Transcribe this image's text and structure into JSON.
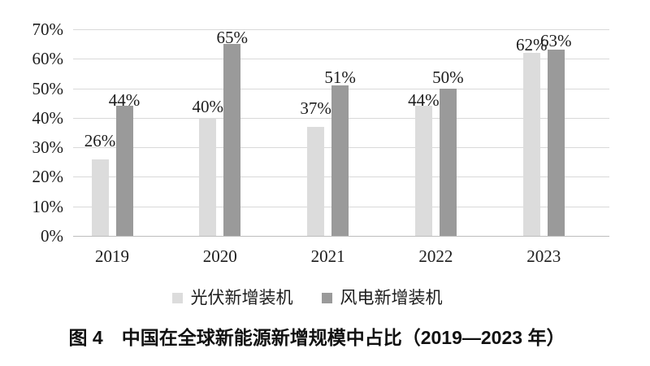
{
  "figure": {
    "caption": "图 4　中国在全球新能源新增规模中占比（2019—2023 年）"
  },
  "chart_data": {
    "type": "bar",
    "title": "图 4　中国在全球新能源新增规模中占比（2019—2023 年）",
    "categories": [
      "2019",
      "2020",
      "2021",
      "2022",
      "2023"
    ],
    "series": [
      {
        "name": "光伏新增装机",
        "color": "#dcdcdc",
        "values": [
          26,
          40,
          37,
          44,
          62
        ]
      },
      {
        "name": "风电新增装机",
        "color": "#9a9a9a",
        "values": [
          44,
          65,
          51,
          50,
          63
        ]
      }
    ],
    "value_label_suffix": "%",
    "xlabel": "",
    "ylabel": "",
    "ylim": [
      0,
      70
    ],
    "ytick_step": 10,
    "ytick_labels": [
      "0%",
      "10%",
      "20%",
      "30%",
      "40%",
      "50%",
      "60%",
      "70%"
    ],
    "grid": true,
    "legend_position": "bottom",
    "colors": {
      "gridline": "#d9d9d9",
      "axis_line": "#bdbdbd",
      "text": "#1c1c1c",
      "background": "#ffffff"
    }
  }
}
